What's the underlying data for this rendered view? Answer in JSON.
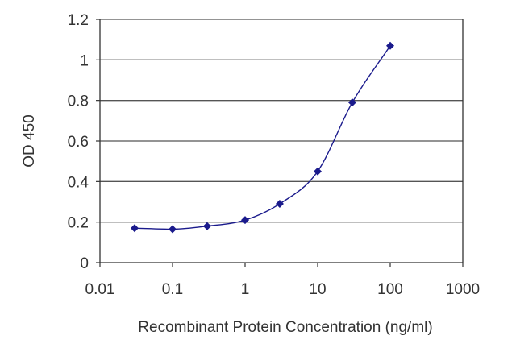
{
  "chart_data": {
    "type": "line",
    "title": "",
    "xlabel": "Recombinant Protein Concentration (ng/ml)",
    "ylabel": "OD 450",
    "x_scale": "log",
    "xlim": [
      0.01,
      1000
    ],
    "ylim": [
      0,
      1.2
    ],
    "x_ticks": [
      "0.01",
      "0.1",
      "1",
      "10",
      "100",
      "1000"
    ],
    "y_ticks": [
      "0",
      "0.2",
      "0.4",
      "0.6",
      "0.8",
      "1",
      "1.2"
    ],
    "grid": "horizontal",
    "legend": "none",
    "series": [
      {
        "x": [
          0.03,
          0.1,
          0.3,
          1,
          3,
          10,
          30,
          100
        ],
        "y": [
          0.17,
          0.165,
          0.18,
          0.21,
          0.29,
          0.45,
          0.79,
          1.07
        ],
        "color": "#1a1a8c"
      }
    ],
    "colors": {
      "series": "#1a1a8c",
      "grid": "#555555",
      "axis": "#333333"
    }
  }
}
